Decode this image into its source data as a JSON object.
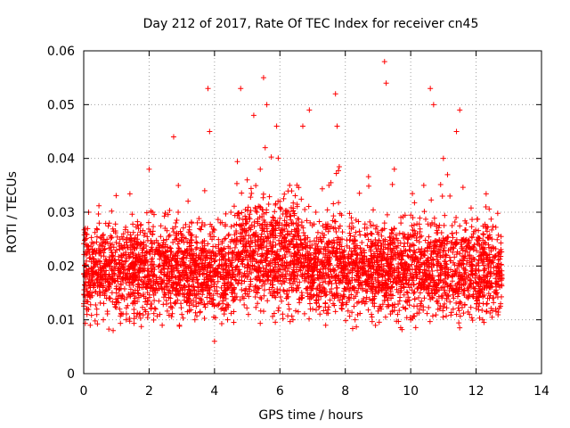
{
  "chart_data": {
    "type": "scatter",
    "title": "Day 212 of 2017, Rate Of TEC Index for receiver cn45",
    "xlabel": "GPS time / hours",
    "ylabel": "ROTI / TECUs",
    "xlim": [
      0,
      14
    ],
    "ylim": [
      0,
      0.06
    ],
    "xticks": [
      0,
      2,
      4,
      6,
      8,
      10,
      12,
      14
    ],
    "xtick_labels": [
      "0",
      "2",
      "4",
      "6",
      "8",
      "10",
      "12",
      "14"
    ],
    "yticks": [
      0,
      0.01,
      0.02,
      0.03,
      0.04,
      0.05,
      0.06
    ],
    "ytick_labels": [
      "0",
      "0.01",
      "0.02",
      "0.03",
      "0.04",
      "0.05",
      "0.06"
    ],
    "grid": true,
    "marker": "+",
    "color": "#ff0000",
    "series": [
      {
        "name": "ROTI",
        "x": [
          0.0,
          0.05,
          0.1,
          0.15,
          0.2,
          0.3,
          0.4,
          0.5,
          0.6,
          0.7,
          0.8,
          0.9,
          1.0,
          1.1,
          1.2,
          1.3,
          1.4,
          1.5,
          1.6,
          1.7,
          1.8,
          1.9,
          2.0,
          2.05,
          2.1,
          2.2,
          2.3,
          2.4,
          2.5,
          2.6,
          2.7,
          2.75,
          2.8,
          2.9,
          3.0,
          3.1,
          3.2,
          3.3,
          3.4,
          3.5,
          3.6,
          3.7,
          3.8,
          3.85,
          3.9,
          4.0,
          4.1,
          4.2,
          4.3,
          4.4,
          4.5,
          4.6,
          4.7,
          4.8,
          4.9,
          5.0,
          5.1,
          5.2,
          5.3,
          5.4,
          5.5,
          5.55,
          5.6,
          5.7,
          5.8,
          5.9,
          6.0,
          6.1,
          6.2,
          6.3,
          6.4,
          6.5,
          6.6,
          6.7,
          6.8,
          6.9,
          7.0,
          7.1,
          7.2,
          7.3,
          7.4,
          7.5,
          7.6,
          7.7,
          7.75,
          7.8,
          7.9,
          8.0,
          8.1,
          8.2,
          8.3,
          8.4,
          8.5,
          8.6,
          8.7,
          8.8,
          8.9,
          9.0,
          9.1,
          9.2,
          9.25,
          9.3,
          9.4,
          9.5,
          9.6,
          9.7,
          9.8,
          9.9,
          10.0,
          10.1,
          10.2,
          10.3,
          10.4,
          10.5,
          10.6,
          10.7,
          10.8,
          10.9,
          11.0,
          11.1,
          11.2,
          11.3,
          11.4,
          11.5,
          11.6,
          11.7,
          11.8,
          11.9,
          12.0,
          12.1,
          12.2,
          12.3,
          12.4,
          12.5,
          12.6,
          12.7,
          12.75
        ],
        "y": [
          0.013,
          0.027,
          0.011,
          0.03,
          0.009,
          0.016,
          0.012,
          0.018,
          0.01,
          0.014,
          0.02,
          0.008,
          0.015,
          0.012,
          0.025,
          0.01,
          0.017,
          0.013,
          0.022,
          0.011,
          0.019,
          0.014,
          0.038,
          0.016,
          0.03,
          0.012,
          0.02,
          0.009,
          0.024,
          0.015,
          0.018,
          0.044,
          0.013,
          0.026,
          0.011,
          0.02,
          0.014,
          0.028,
          0.01,
          0.016,
          0.022,
          0.034,
          0.053,
          0.045,
          0.014,
          0.006,
          0.019,
          0.012,
          0.025,
          0.01,
          0.03,
          0.016,
          0.02,
          0.053,
          0.014,
          0.036,
          0.022,
          0.048,
          0.03,
          0.038,
          0.055,
          0.042,
          0.05,
          0.026,
          0.018,
          0.046,
          0.032,
          0.02,
          0.014,
          0.035,
          0.01,
          0.028,
          0.017,
          0.046,
          0.022,
          0.049,
          0.012,
          0.03,
          0.015,
          0.021,
          0.009,
          0.035,
          0.018,
          0.052,
          0.046,
          0.025,
          0.012,
          0.02,
          0.014,
          0.028,
          0.01,
          0.017,
          0.022,
          0.013,
          0.019,
          0.011,
          0.024,
          0.016,
          0.012,
          0.058,
          0.054,
          0.02,
          0.014,
          0.038,
          0.011,
          0.028,
          0.016,
          0.022,
          0.01,
          0.018,
          0.026,
          0.013,
          0.035,
          0.02,
          0.053,
          0.05,
          0.016,
          0.022,
          0.04,
          0.014,
          0.033,
          0.012,
          0.045,
          0.049,
          0.018,
          0.028,
          0.011,
          0.02,
          0.014,
          0.024,
          0.01,
          0.031,
          0.016,
          0.021,
          0.012,
          0.019,
          0.013
        ],
        "band": {
          "x_start": 0.0,
          "x_end": 12.8,
          "typical_low": 0.007,
          "typical_high": 0.03
        }
      }
    ]
  }
}
